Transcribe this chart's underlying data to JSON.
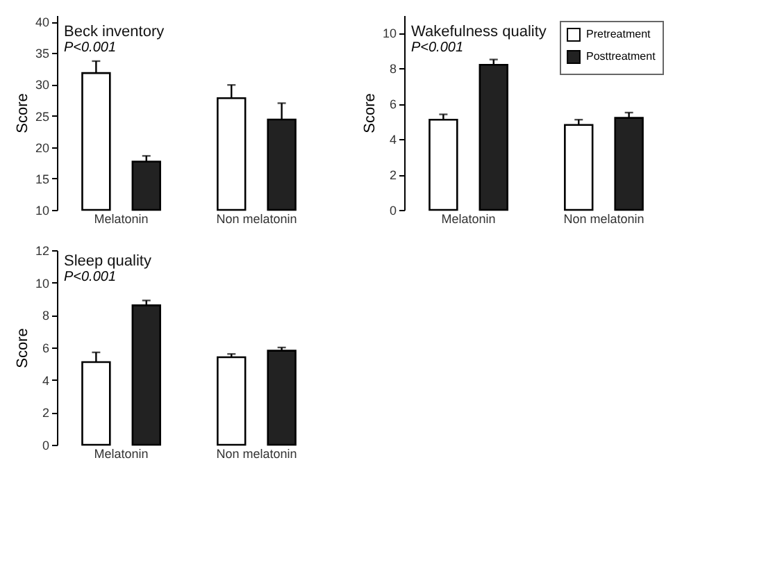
{
  "chart_data": [
    {
      "type": "bar",
      "title": "Beck inventory",
      "annotations": [
        "P<0.001"
      ],
      "ylabel": "Score",
      "categories": [
        "Melatonin",
        "Non melatonin"
      ],
      "ylim": [
        10,
        41
      ],
      "yticks": [
        10,
        15,
        20,
        25,
        30,
        35,
        40
      ],
      "grid": false,
      "series": [
        {
          "color": "#ffffff",
          "values": [
            31.8,
            27.8
          ],
          "errors": [
            [
              31.8,
              33.7
            ],
            [
              27.8,
              29.9
            ]
          ]
        },
        {
          "color": "#222222",
          "values": [
            17.7,
            24.4
          ],
          "errors": [
            [
              17.7,
              18.6
            ],
            [
              24.4,
              27.0
            ]
          ]
        }
      ]
    },
    {
      "type": "bar",
      "title": "Wakefulness quality",
      "annotations": [
        "P<0.001"
      ],
      "ylabel": "Score",
      "categories": [
        "Melatonin",
        "Non melatonin"
      ],
      "ylim": [
        0,
        11
      ],
      "yticks": [
        0,
        2,
        4,
        6,
        8,
        10
      ],
      "grid": false,
      "legend": "top right",
      "series": [
        {
          "name": "Pretreatment",
          "color": "#ffffff",
          "values": [
            5.1,
            4.8
          ],
          "errors": [
            [
              5.1,
              5.4
            ],
            [
              4.8,
              5.1
            ]
          ]
        },
        {
          "name": "Posttreatment",
          "color": "#222222",
          "values": [
            8.2,
            5.2
          ],
          "errors": [
            [
              8.2,
              8.5
            ],
            [
              5.2,
              5.5
            ]
          ]
        }
      ]
    },
    {
      "type": "bar",
      "title": "Sleep quality",
      "annotations": [
        "P<0.001"
      ],
      "ylabel": "Score",
      "categories": [
        "Melatonin",
        "Non melatonin"
      ],
      "ylim": [
        0,
        12
      ],
      "yticks": [
        0,
        2,
        4,
        6,
        8,
        10,
        12
      ],
      "grid": false,
      "series": [
        {
          "color": "#ffffff",
          "values": [
            5.1,
            5.4
          ],
          "errors": [
            [
              5.1,
              5.7
            ],
            [
              5.4,
              5.6
            ]
          ]
        },
        {
          "color": "#222222",
          "values": [
            8.6,
            5.8
          ],
          "errors": [
            [
              8.6,
              8.9
            ],
            [
              5.8,
              6.0
            ]
          ]
        }
      ]
    }
  ]
}
